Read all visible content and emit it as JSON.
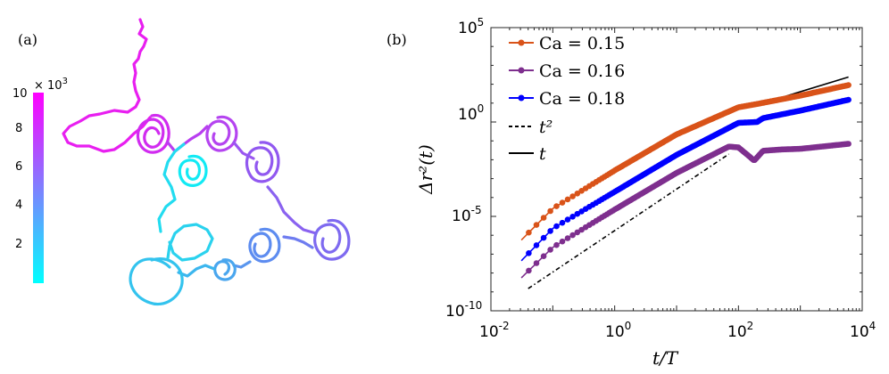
{
  "panel_a": {
    "label": "(a)",
    "colorbar": {
      "multiplier": "× 10",
      "multiplier_exp": "3",
      "ticks": [
        "10",
        "8",
        "6",
        "4",
        "2"
      ],
      "tick_values": [
        10,
        8,
        6,
        4,
        2
      ],
      "range": [
        0.2,
        10
      ],
      "color_low": "#00ffff",
      "color_high": "#ff00ff"
    }
  },
  "panel_b": {
    "label": "(b)",
    "x_tick_labels": [
      {
        "base": "10",
        "exp": "-2"
      },
      {
        "base": "10",
        "exp": "0"
      },
      {
        "base": "10",
        "exp": "2"
      },
      {
        "base": "10",
        "exp": "4"
      }
    ],
    "y_tick_labels": [
      {
        "base": "10",
        "exp": "5"
      },
      {
        "base": "10",
        "exp": "0"
      },
      {
        "base": "10",
        "exp": "-5"
      },
      {
        "base": "10",
        "exp": "-10"
      }
    ],
    "xlabel": "t/T",
    "ylabel": "Δr²(t)",
    "legend": {
      "ca_015": "Ca = 0.15",
      "ca_016": "Ca = 0.16",
      "ca_018": "Ca = 0.18",
      "dashed_t2": "t²",
      "solid_t": "t"
    }
  },
  "chart_data": {
    "type": "line",
    "xscale": "log",
    "yscale": "log",
    "xlim": [
      0.01,
      10000
    ],
    "ylim": [
      1e-10,
      100000
    ],
    "series": [
      {
        "name": "Ca = 0.15",
        "color": "#d95319",
        "x": [
          0.03,
          0.1,
          1,
          10,
          100,
          200,
          1000,
          6000
        ],
        "y": [
          5e-07,
          2.6e-05,
          0.0027,
          0.22,
          6,
          9,
          25,
          90
        ]
      },
      {
        "name": "Ca = 0.16",
        "color": "#7e2f8e",
        "x": [
          0.03,
          0.1,
          1,
          10,
          70,
          100,
          150,
          180,
          250,
          500,
          1000,
          6000
        ],
        "y": [
          5e-09,
          2.3e-07,
          2.3e-05,
          0.002,
          0.05,
          0.045,
          0.015,
          0.009,
          0.03,
          0.035,
          0.038,
          0.07
        ]
      },
      {
        "name": "Ca = 0.18",
        "color": "#0000ff",
        "x": [
          0.03,
          0.1,
          1,
          10,
          100,
          200,
          250,
          1000,
          6000
        ],
        "y": [
          4e-08,
          2.3e-06,
          0.0002,
          0.018,
          0.9,
          1.0,
          1.6,
          4,
          15
        ]
      }
    ],
    "reference_lines": [
      {
        "name": "t²",
        "style": "dashed",
        "x": [
          0.04,
          70
        ],
        "y": [
          1.5e-09,
          0.02
        ]
      },
      {
        "name": "t",
        "style": "solid",
        "x": [
          200,
          6000
        ],
        "y": [
          8,
          240
        ]
      }
    ]
  }
}
